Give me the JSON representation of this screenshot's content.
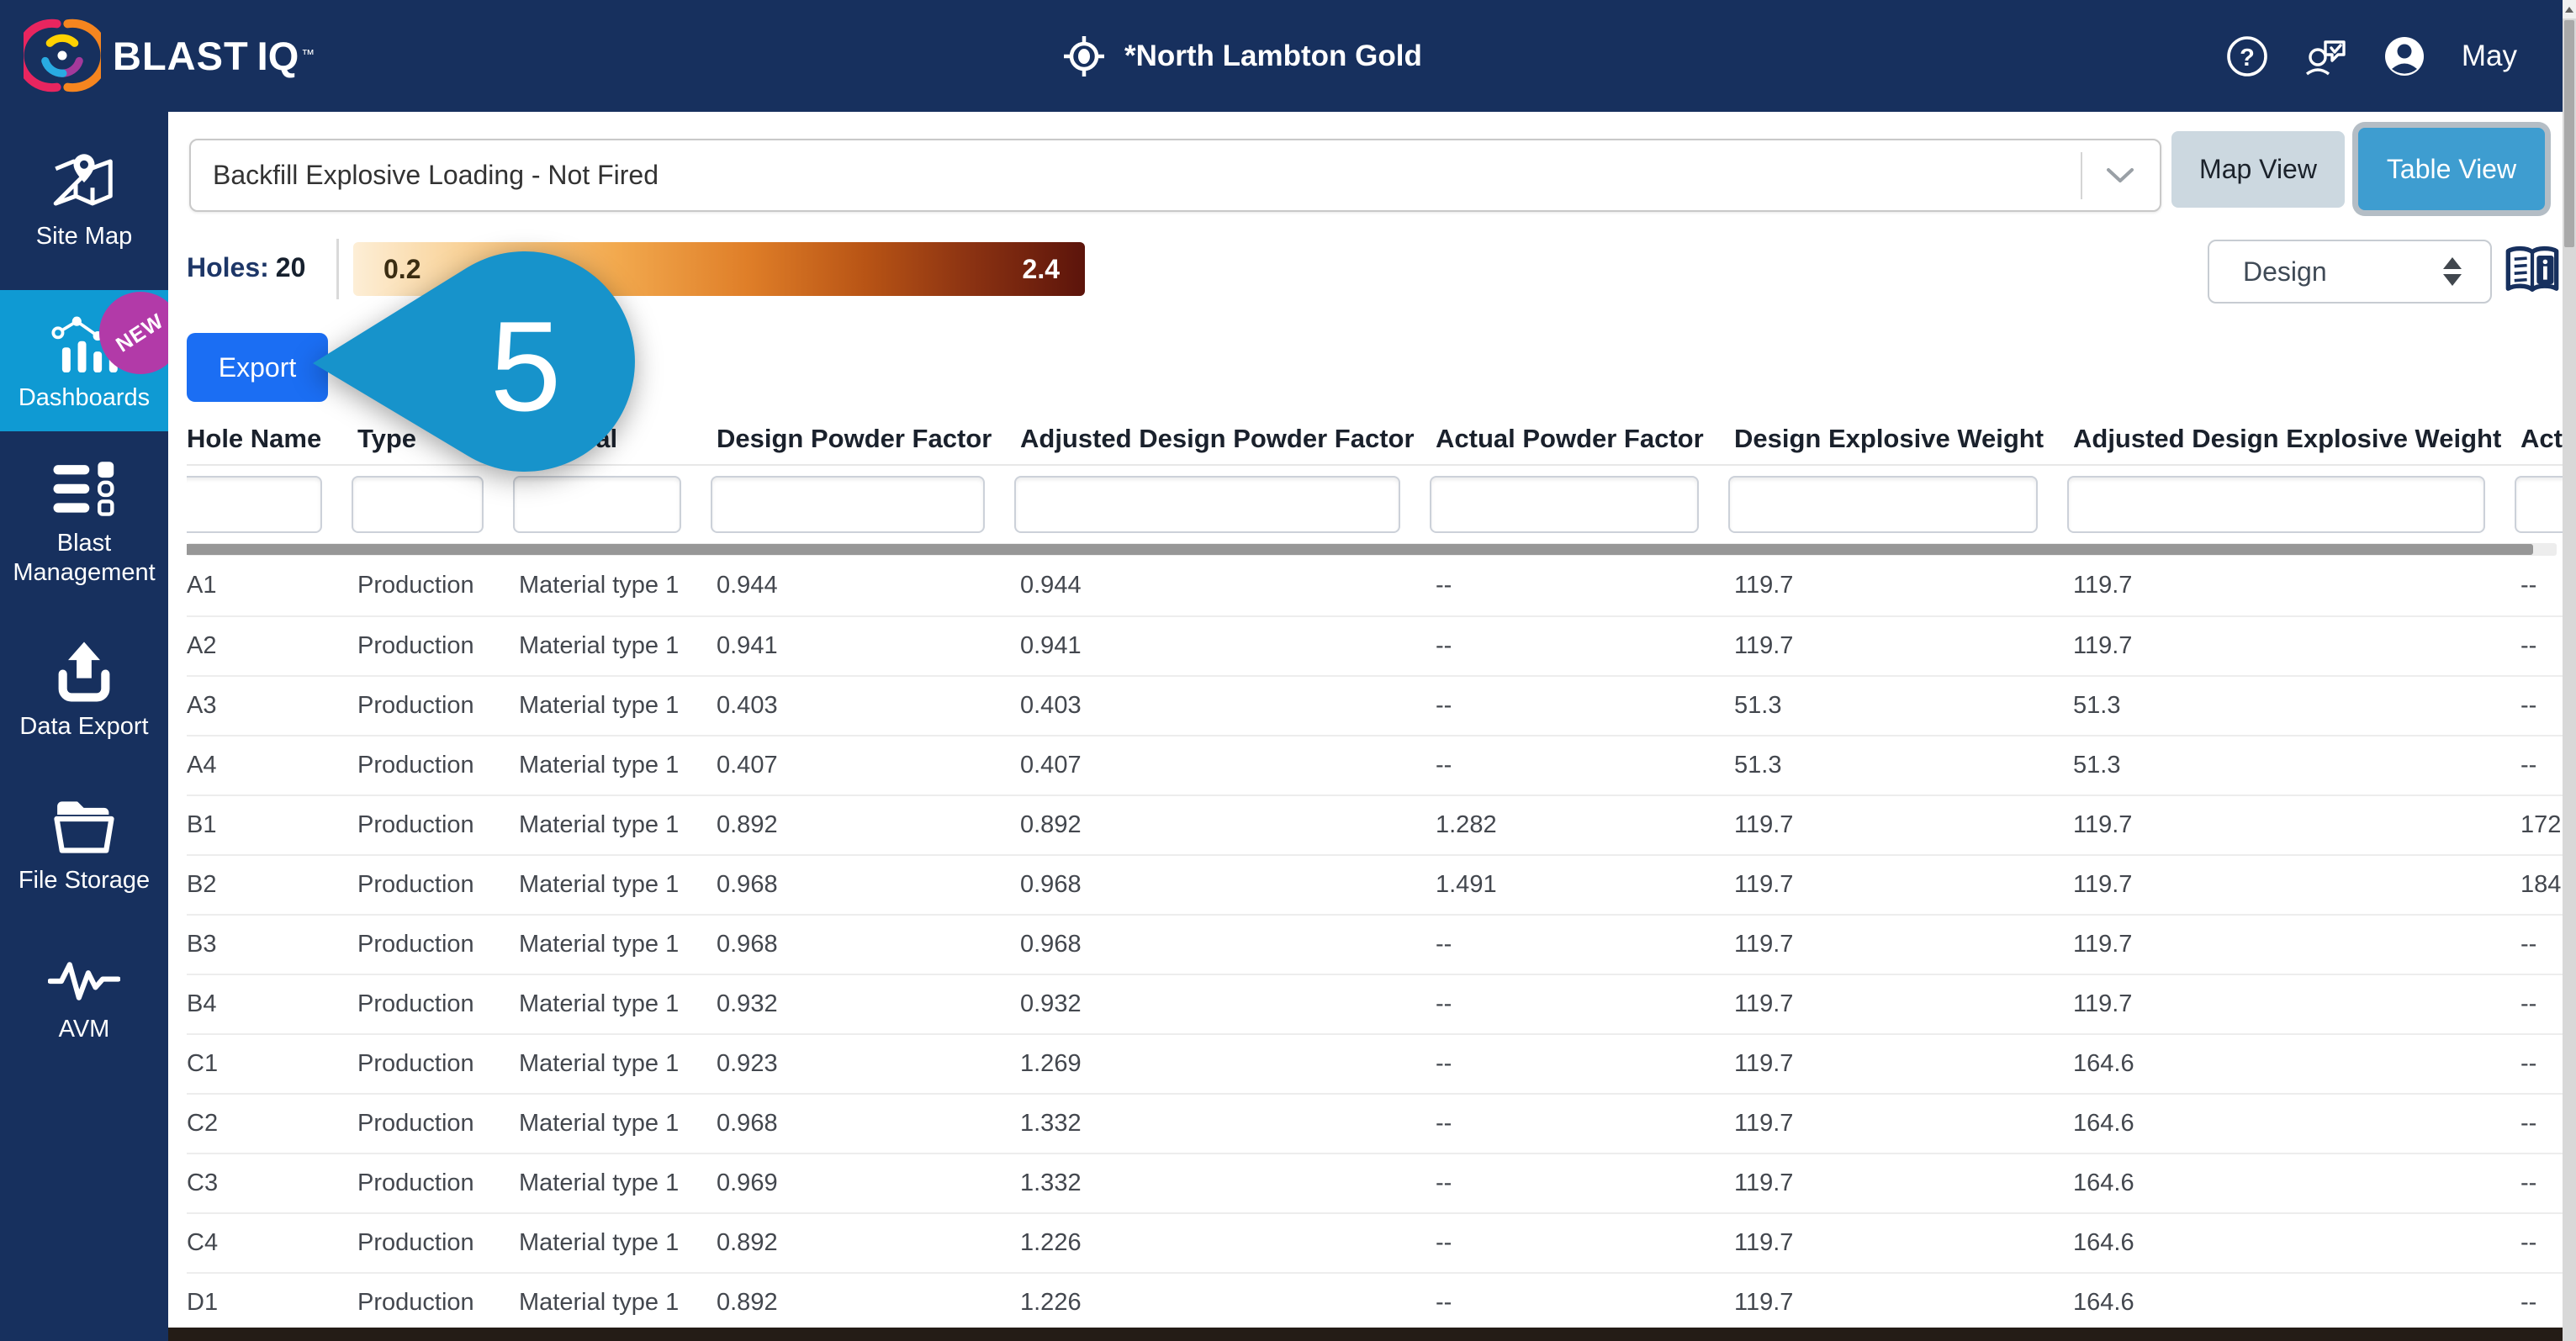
{
  "navbar": {
    "brand": "BLAST",
    "brand_suffix": "IQ",
    "trademark": "™",
    "site_title": "*North Lambton Gold",
    "user_name": "May"
  },
  "sidebar": {
    "items": [
      {
        "label": "Site Map",
        "active": false
      },
      {
        "label": "Dashboards",
        "active": true,
        "badge": "NEW"
      },
      {
        "label": "Blast Management",
        "active": false
      },
      {
        "label": "Data Export",
        "active": false
      },
      {
        "label": "File Storage",
        "active": false
      },
      {
        "label": "AVM",
        "active": false
      }
    ]
  },
  "toolbar": {
    "report_selector_value": "Backfill Explosive Loading - Not Fired",
    "map_view_label": "Map View",
    "table_view_label": "Table View"
  },
  "legend": {
    "holes_label": "Holes:",
    "holes_count": "20",
    "scale_min": "0.2",
    "scale_max": "2.4"
  },
  "controls": {
    "data_mode_value": "Design",
    "export_label": "Export"
  },
  "annotation": {
    "step_number": "5",
    "color": "#1793cb"
  },
  "colors": {
    "navy": "#17305e",
    "sidebar_active_blue": "#0f9ad3",
    "badge_magenta": "#b23aa8",
    "export_blue": "#1b6ef3",
    "table_view_blue": "#3e9dd0",
    "map_view_gray": "#ccd8e0",
    "gradient_start": "#fdeed6",
    "gradient_end": "#5c140b"
  },
  "table": {
    "columns": [
      "Hole Name",
      "Type",
      "Material",
      "Design Powder Factor",
      "Adjusted Design Powder Factor",
      "Actual Powder Factor",
      "Design Explosive Weight",
      "Adjusted Design Explosive Weight",
      "Act"
    ],
    "rows": [
      [
        "A1",
        "Production",
        "Material type 1",
        "0.944",
        "0.944",
        "--",
        "119.7",
        "119.7",
        "--"
      ],
      [
        "A2",
        "Production",
        "Material type 1",
        "0.941",
        "0.941",
        "--",
        "119.7",
        "119.7",
        "--"
      ],
      [
        "A3",
        "Production",
        "Material type 1",
        "0.403",
        "0.403",
        "--",
        "51.3",
        "51.3",
        "--"
      ],
      [
        "A4",
        "Production",
        "Material type 1",
        "0.407",
        "0.407",
        "--",
        "51.3",
        "51.3",
        "--"
      ],
      [
        "B1",
        "Production",
        "Material type 1",
        "0.892",
        "0.892",
        "1.282",
        "119.7",
        "119.7",
        "172"
      ],
      [
        "B2",
        "Production",
        "Material type 1",
        "0.968",
        "0.968",
        "1.491",
        "119.7",
        "119.7",
        "184"
      ],
      [
        "B3",
        "Production",
        "Material type 1",
        "0.968",
        "0.968",
        "--",
        "119.7",
        "119.7",
        "--"
      ],
      [
        "B4",
        "Production",
        "Material type 1",
        "0.932",
        "0.932",
        "--",
        "119.7",
        "119.7",
        "--"
      ],
      [
        "C1",
        "Production",
        "Material type 1",
        "0.923",
        "1.269",
        "--",
        "119.7",
        "164.6",
        "--"
      ],
      [
        "C2",
        "Production",
        "Material type 1",
        "0.968",
        "1.332",
        "--",
        "119.7",
        "164.6",
        "--"
      ],
      [
        "C3",
        "Production",
        "Material type 1",
        "0.969",
        "1.332",
        "--",
        "119.7",
        "164.6",
        "--"
      ],
      [
        "C4",
        "Production",
        "Material type 1",
        "0.892",
        "1.226",
        "--",
        "119.7",
        "164.6",
        "--"
      ],
      [
        "D1",
        "Production",
        "Material type 1",
        "0.892",
        "1.226",
        "--",
        "119.7",
        "164.6",
        "--"
      ]
    ]
  }
}
